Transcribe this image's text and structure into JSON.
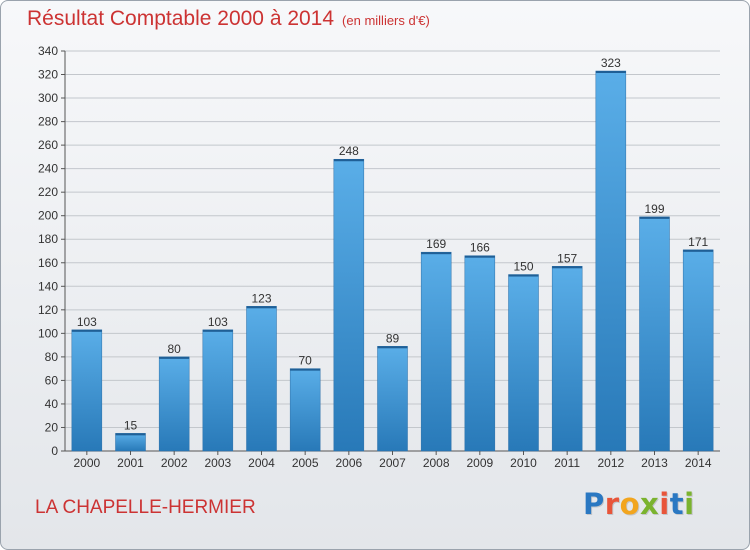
{
  "header": {
    "title": "Résultat Comptable 2000 à 2014",
    "unit": "(en milliers d'€)"
  },
  "footer": {
    "commune": "LA CHAPELLE-HERMIER"
  },
  "logo": {
    "text": "Proxiti",
    "letters": [
      {
        "ch": "P",
        "color": "#2a78c2"
      },
      {
        "ch": "r",
        "color": "#e8553a"
      },
      {
        "ch": "o",
        "color": "#f2a51e"
      },
      {
        "ch": "x",
        "color": "#7ab32e"
      },
      {
        "ch": "i",
        "color": "#e8553a"
      },
      {
        "ch": "t",
        "color": "#2a78c2"
      },
      {
        "ch": "i",
        "color": "#7ab32e"
      }
    ]
  },
  "colors": {
    "bar_top": "#5aaee8",
    "bar_bottom": "#2879b8",
    "title": "#cc3333"
  },
  "chart_data": {
    "type": "bar",
    "categories": [
      "2000",
      "2001",
      "2002",
      "2003",
      "2004",
      "2005",
      "2006",
      "2007",
      "2008",
      "2009",
      "2010",
      "2011",
      "2012",
      "2013",
      "2014"
    ],
    "values": [
      103,
      15,
      80,
      103,
      123,
      70,
      248,
      89,
      169,
      166,
      150,
      157,
      323,
      199,
      171
    ],
    "ylim": [
      0,
      340
    ],
    "yticks": [
      0,
      20,
      40,
      60,
      80,
      100,
      120,
      140,
      160,
      180,
      200,
      220,
      240,
      260,
      280,
      300,
      320,
      340
    ],
    "grid": true,
    "data_labels": true
  }
}
